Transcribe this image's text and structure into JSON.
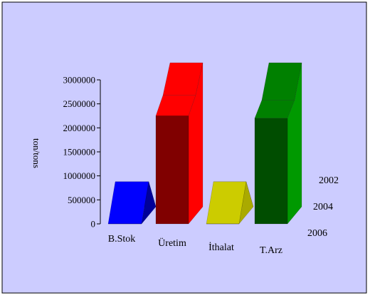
{
  "chart_data": {
    "type": "bar",
    "style": "3d-ribbon",
    "title": "",
    "ylabel": "ton/tons",
    "xlabel": "",
    "categories": [
      "B.Stok",
      "Üretim",
      "İthalat",
      "T.Arz"
    ],
    "series": [
      {
        "name": "2002",
        "values": [
          0,
          3000000,
          0,
          3000000
        ]
      },
      {
        "name": "2004",
        "values": [
          700000,
          2500000,
          700000,
          2400000
        ]
      },
      {
        "name": "2006",
        "values": [
          0,
          2250000,
          0,
          2200000
        ]
      }
    ],
    "depth_labels": [
      "2002",
      "2004",
      "2006"
    ],
    "yticks": [
      "0",
      "500000",
      "1000000",
      "1500000",
      "2000000",
      "2500000",
      "3000000"
    ],
    "ylim": [
      0,
      3000000
    ],
    "grid": false,
    "legend": "none",
    "background": "#ccccff",
    "colors": {
      "B.Stok": {
        "front": "#0000cc",
        "top": "#0000ff",
        "side": "#000099"
      },
      "Üretim": {
        "front": "#800000",
        "top": "#ff0000",
        "side": "#ff0000"
      },
      "İthalat": {
        "front": "#999900",
        "top": "#cccc00",
        "side": "#aaaa00"
      },
      "T.Arz": {
        "front": "#004d00",
        "top": "#008000",
        "side": "#009900"
      }
    }
  }
}
